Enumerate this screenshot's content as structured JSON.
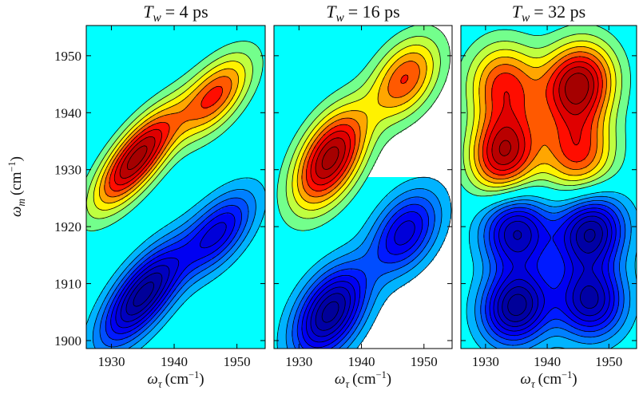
{
  "chart_data": [
    {
      "type": "contour",
      "title": {
        "symbol": "T",
        "subscript": "w",
        "text": "= 4 ps"
      },
      "xlabel": {
        "symbol": "ω",
        "subscript": "τ",
        "unit_open": "(cm",
        "unit_exponent": "−1",
        "unit_close": ")"
      },
      "ylabel": {
        "symbol": "ω",
        "subscript": "m",
        "unit_open": "(cm",
        "unit_exponent": "−1",
        "unit_close": ")"
      },
      "xlim": [
        1926,
        1954.5
      ],
      "ylim": [
        1898.6,
        1955.3
      ],
      "xticks": [
        1930,
        1940,
        1950
      ],
      "yticks": [
        1900,
        1910,
        1920,
        1930,
        1940,
        1950
      ],
      "show_ytick_labels": true,
      "levels": [
        -0.9,
        -0.8,
        -0.7,
        -0.6,
        -0.5,
        -0.4,
        -0.3,
        -0.2,
        -0.1,
        0.1,
        0.2,
        0.3,
        0.4,
        0.5,
        0.6,
        0.7,
        0.8,
        0.9
      ],
      "colormap": [
        "#00007f",
        "#0000ff",
        "#00ffff",
        "#ffff00",
        "#ff0000",
        "#7f0000"
      ],
      "peaks": [
        {
          "x": 1934,
          "y": 1932,
          "amplitude": 0.95,
          "sx": 4.5,
          "sy": 6,
          "rho": 0.75
        },
        {
          "x": 1946.5,
          "y": 1943,
          "amplitude": 0.62,
          "sx": 4,
          "sy": 5,
          "rho": 0.6
        },
        {
          "x": 1935,
          "y": 1908,
          "amplitude": -0.95,
          "sx": 4.5,
          "sy": 6,
          "rho": 0.7
        },
        {
          "x": 1947,
          "y": 1919,
          "amplitude": -0.62,
          "sx": 4,
          "sy": 5,
          "rho": 0.6
        }
      ]
    },
    {
      "type": "contour",
      "title": {
        "symbol": "T",
        "subscript": "w",
        "text": "= 16 ps"
      },
      "xlabel": {
        "symbol": "ω",
        "subscript": "τ",
        "unit_open": "(cm",
        "unit_exponent": "−1",
        "unit_close": ")"
      },
      "xlim": [
        1926,
        1954.5
      ],
      "ylim": [
        1898.6,
        1955.3
      ],
      "xticks": [
        1930,
        1940,
        1950
      ],
      "yticks": [
        1900,
        1910,
        1920,
        1930,
        1940,
        1950
      ],
      "show_ytick_labels": false,
      "levels": [
        -0.9,
        -0.8,
        -0.7,
        -0.6,
        -0.5,
        -0.4,
        -0.3,
        -0.2,
        -0.1,
        0.1,
        0.2,
        0.3,
        0.4,
        0.5,
        0.6,
        0.7,
        0.8,
        0.9
      ],
      "colormap": [
        "#00007f",
        "#0000ff",
        "#00ffff",
        "#ffff00",
        "#ff0000",
        "#7f0000"
      ],
      "peaks": [
        {
          "x": 1935,
          "y": 1932,
          "amplitude": 0.95,
          "sx": 4,
          "sy": 6,
          "rho": 0.5
        },
        {
          "x": 1947,
          "y": 1946,
          "amplitude": 0.6,
          "sx": 3.8,
          "sy": 5,
          "rho": 0.4
        },
        {
          "x": 1935,
          "y": 1905,
          "amplitude": -0.95,
          "sx": 4,
          "sy": 5.5,
          "rho": 0.45
        },
        {
          "x": 1947,
          "y": 1919,
          "amplitude": -0.65,
          "sx": 3.8,
          "sy": 5,
          "rho": 0.4
        }
      ]
    },
    {
      "type": "contour",
      "title": {
        "symbol": "T",
        "subscript": "w",
        "text": "= 32 ps"
      },
      "xlabel": {
        "symbol": "ω",
        "subscript": "τ",
        "unit_open": "(cm",
        "unit_exponent": "−1",
        "unit_close": ")"
      },
      "xlim": [
        1926,
        1954.5
      ],
      "ylim": [
        1898.6,
        1955.3
      ],
      "xticks": [
        1930,
        1940,
        1950
      ],
      "yticks": [
        1900,
        1910,
        1920,
        1930,
        1940,
        1950
      ],
      "show_ytick_labels": false,
      "levels": [
        -0.9,
        -0.8,
        -0.7,
        -0.6,
        -0.5,
        -0.4,
        -0.3,
        -0.2,
        -0.1,
        0.1,
        0.2,
        0.3,
        0.4,
        0.5,
        0.6,
        0.7,
        0.8,
        0.9
      ],
      "colormap": [
        "#00007f",
        "#0000ff",
        "#00ffff",
        "#ffff00",
        "#ff0000",
        "#7f0000"
      ],
      "peaks": [
        {
          "x": 1933,
          "y": 1933,
          "amplitude": 0.88,
          "sx": 3.8,
          "sy": 5,
          "rho": 0.1
        },
        {
          "x": 1945,
          "y": 1945,
          "amplitude": 0.95,
          "sx": 4,
          "sy": 5,
          "rho": 0.1
        },
        {
          "x": 1945,
          "y": 1933,
          "amplitude": 0.62,
          "sx": 4,
          "sy": 5,
          "rho": 0
        },
        {
          "x": 1933,
          "y": 1945,
          "amplitude": 0.62,
          "sx": 4,
          "sy": 5,
          "rho": 0
        },
        {
          "x": 1935,
          "y": 1906,
          "amplitude": -0.95,
          "sx": 3.8,
          "sy": 4.5,
          "rho": 0.1
        },
        {
          "x": 1947,
          "y": 1907,
          "amplitude": -0.82,
          "sx": 3.8,
          "sy": 4.5,
          "rho": 0
        },
        {
          "x": 1935,
          "y": 1919,
          "amplitude": -0.8,
          "sx": 3.8,
          "sy": 4.5,
          "rho": 0
        },
        {
          "x": 1947,
          "y": 1919,
          "amplitude": -0.9,
          "sx": 3.8,
          "sy": 4.5,
          "rho": 0.1
        }
      ]
    }
  ]
}
